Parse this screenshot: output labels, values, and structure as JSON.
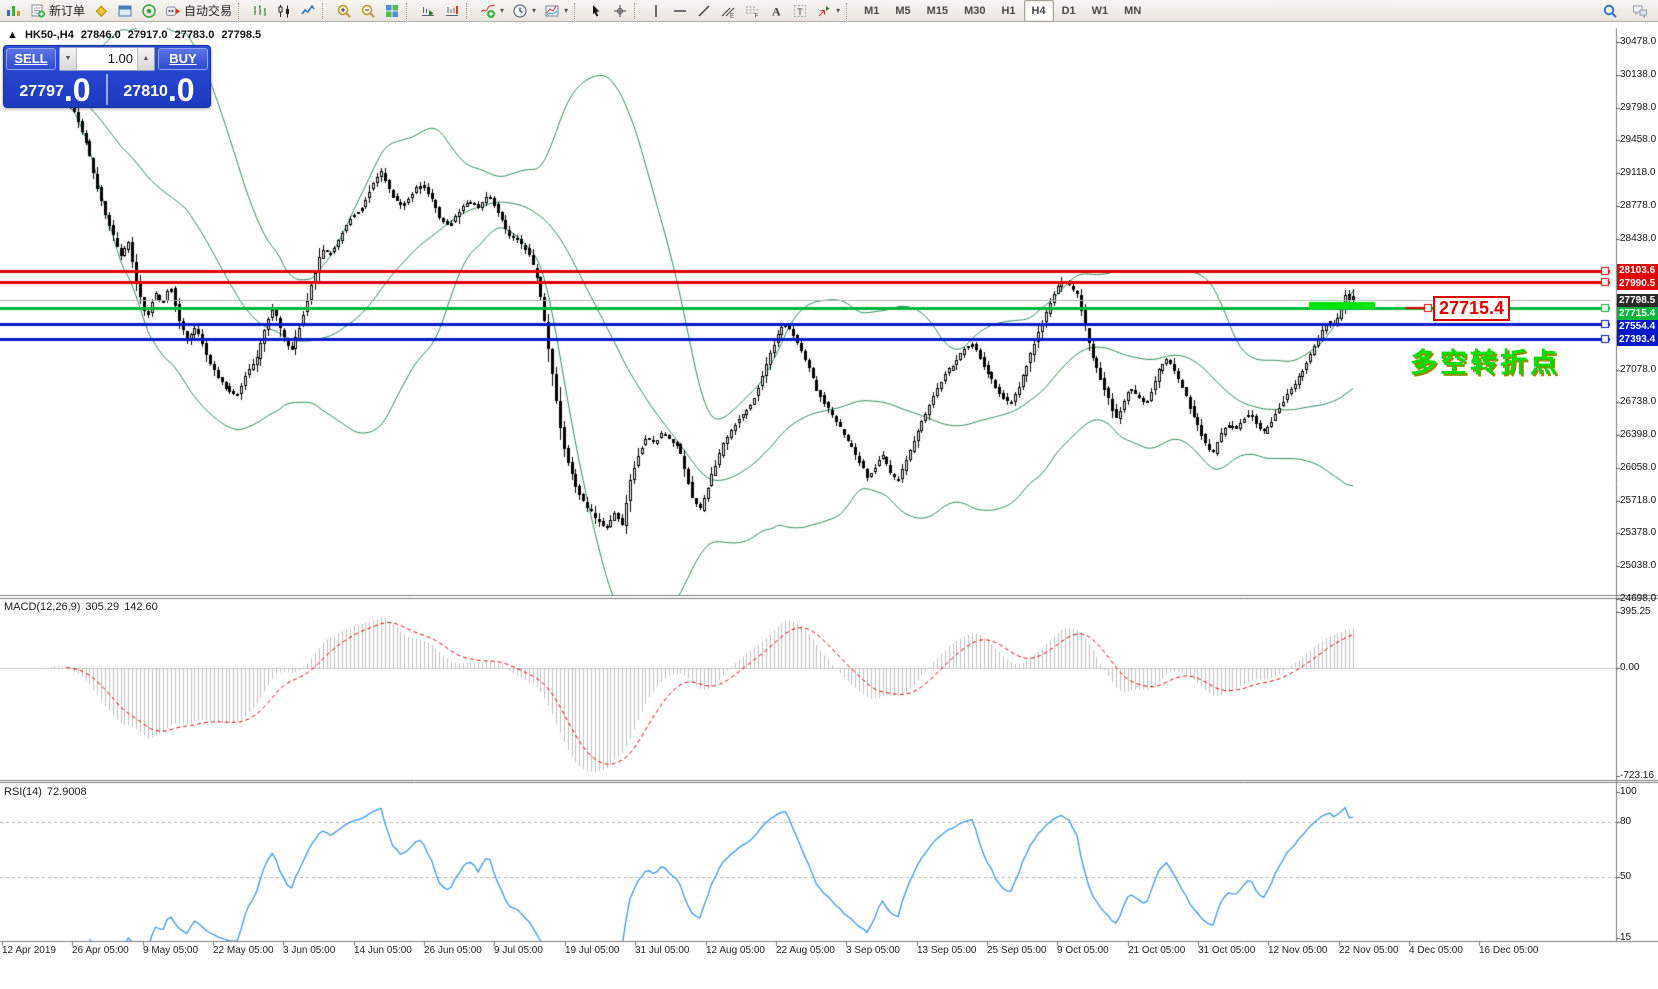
{
  "toolbar": {
    "buttons": [
      {
        "name": "chart-window-icon-button",
        "icon": "chartmini"
      },
      {
        "name": "new-order-button",
        "icon": "neworder",
        "label": "新订单"
      },
      {
        "name": "metaquotes-icon-button",
        "icon": "diamond"
      },
      {
        "name": "market-watch-button",
        "icon": "window"
      },
      {
        "name": "signals-button",
        "icon": "radar"
      },
      {
        "name": "autotrading-button",
        "icon": "autotrade",
        "label": "自动交易"
      },
      {
        "sep": true
      },
      {
        "name": "bar-chart-button",
        "icon": "bars"
      },
      {
        "name": "candlestick-chart-button",
        "icon": "candles"
      },
      {
        "name": "line-chart-button",
        "icon": "linechart"
      },
      {
        "sep": true
      },
      {
        "name": "zoom-in-button",
        "icon": "zoomin"
      },
      {
        "name": "zoom-out-button",
        "icon": "zoomout"
      },
      {
        "name": "tile-windows-button",
        "icon": "tiles"
      },
      {
        "sep": true
      },
      {
        "name": "auto-scroll-button",
        "icon": "autoscroll"
      },
      {
        "name": "chart-shift-button",
        "icon": "chartshift"
      },
      {
        "sep": true
      },
      {
        "name": "indicators-button",
        "icon": "indicators",
        "dropdown": true
      },
      {
        "name": "periods-button",
        "icon": "clock",
        "dropdown": true
      },
      {
        "name": "templates-button",
        "icon": "template",
        "dropdown": true
      },
      {
        "sep": true
      },
      {
        "name": "cursor-button",
        "icon": "cursor"
      },
      {
        "name": "crosshair-button",
        "icon": "crosshair"
      },
      {
        "sep": true
      },
      {
        "name": "vertical-line-button",
        "icon": "vline"
      },
      {
        "name": "horizontal-line-button",
        "icon": "hline"
      },
      {
        "name": "trendline-button",
        "icon": "tline"
      },
      {
        "name": "equidistant-channel-button",
        "icon": "channel"
      },
      {
        "name": "fibonacci-button",
        "icon": "fibo"
      },
      {
        "name": "text-button",
        "icon": "textA"
      },
      {
        "name": "text-label-button",
        "icon": "labelT"
      },
      {
        "name": "arrows-button",
        "icon": "arrows",
        "dropdown": true
      },
      {
        "sep": true
      }
    ],
    "timeframes": [
      {
        "label": "M1"
      },
      {
        "label": "M5"
      },
      {
        "label": "M15"
      },
      {
        "label": "M30"
      },
      {
        "label": "H1"
      },
      {
        "label": "H4",
        "active": true
      },
      {
        "label": "D1"
      },
      {
        "label": "W1"
      },
      {
        "label": "MN"
      }
    ],
    "right_icons": [
      {
        "name": "search-button",
        "icon": "search"
      },
      {
        "name": "chat-button",
        "icon": "chat"
      }
    ]
  },
  "title": {
    "arrow": "▲",
    "symbol": "HK50-,H4",
    "open": "27846.0",
    "high": "27917.0",
    "low": "27783.0",
    "close": "27798.5"
  },
  "trade": {
    "sell_label": "SELL",
    "buy_label": "BUY",
    "volume": "1.00",
    "sell_price_main": "27797",
    "sell_price_big": ".0",
    "buy_price_main": "27810",
    "buy_price_big": ".0",
    "spin_down": "▼",
    "spin_up": "▲"
  },
  "macd": {
    "name_label": "MACD(12,26,9)",
    "main_value": "305.29",
    "signal_value": "142.60"
  },
  "rsi": {
    "name_label": "RSI(14)",
    "value": "72.9008"
  },
  "callout": {
    "text": "27715.4"
  },
  "annotation": {
    "text": "多空转折点"
  },
  "chart_data": {
    "type": "candlestick",
    "symbol": "HK50-",
    "period": "H4",
    "last_bar": {
      "open": 27846.0,
      "high": 27917.0,
      "low": 27783.0,
      "close": 27798.5
    },
    "quote": {
      "sell": 27797.0,
      "buy": 27810.0,
      "volume": 1.0
    },
    "y_axis": {
      "min": 24698.0,
      "max": 30478.0,
      "tick_step": 340,
      "ticks": [
        30478.0,
        30138.0,
        29798.0,
        29458.0,
        29118.0,
        28778.0,
        28438.0,
        28098.0,
        27758.0,
        27418.0,
        27078.0,
        26738.0,
        26398.0,
        26058.0,
        25718.0,
        25378.0,
        25038.0,
        24698.0
      ]
    },
    "x_labels": [
      "12 Apr 2019",
      "26 Apr 05:00",
      "9 May 05:00",
      "22 May 05:00",
      "3 Jun 05:00",
      "14 Jun 05:00",
      "26 Jun 05:00",
      "9 Jul 05:00",
      "19 Jul 05:00",
      "31 Jul 05:00",
      "12 Aug 05:00",
      "22 Aug 05:00",
      "3 Sep 05:00",
      "13 Sep 05:00",
      "25 Sep 05:00",
      "9 Oct 05:00",
      "21 Oct 05:00",
      "31 Oct 05:00",
      "12 Nov 05:00",
      "22 Nov 05:00",
      "4 Dec 05:00",
      "16 Dec 05:00"
    ],
    "levels": [
      {
        "price": 28103.6,
        "label": "28103.6",
        "color": "#e00000",
        "kind": "resistance"
      },
      {
        "price": 27990.5,
        "label": "27990.5",
        "color": "#e00000",
        "kind": "resistance"
      },
      {
        "price": 27798.5,
        "label": "27798.5",
        "color": "#2b2b2b",
        "kind": "current",
        "line_color": "#b4b4b4"
      },
      {
        "price": 27715.4,
        "label": "27715.4",
        "color": "#00b83c",
        "kind": "pivot"
      },
      {
        "price": 27554.4,
        "label": "27554.4",
        "color": "#0018cc",
        "kind": "support"
      },
      {
        "price": 27393.4,
        "label": "27393.4",
        "color": "#0018cc",
        "kind": "support"
      }
    ],
    "highlight_bar": {
      "price": 27715.4,
      "color": "#00e400"
    },
    "indicators": {
      "bollinger": {
        "period": 40,
        "deviation": 2,
        "color": "#2e8b57"
      },
      "macd": {
        "params": [
          12,
          26,
          9
        ],
        "current_main": 305.29,
        "current_signal": 142.6,
        "axis": [
          395.25,
          0.0,
          -723.16
        ],
        "hist_color": "#bfbfbf",
        "signal_color": "#e00000"
      },
      "rsi": {
        "period": 14,
        "current": 72.9008,
        "levels": [
          80,
          50,
          15
        ],
        "axis": [
          100,
          80,
          50,
          15
        ],
        "color": "#3d96e8"
      }
    },
    "bars_count": 340,
    "price_path_anchors": [
      [
        35,
        30000
      ],
      [
        45,
        29850
      ],
      [
        55,
        30060
      ],
      [
        68,
        29920
      ],
      [
        80,
        29700
      ],
      [
        90,
        29420
      ],
      [
        100,
        29000
      ],
      [
        108,
        28720
      ],
      [
        116,
        28480
      ],
      [
        124,
        28250
      ],
      [
        132,
        28400
      ],
      [
        140,
        27980
      ],
      [
        150,
        27600
      ],
      [
        158,
        27880
      ],
      [
        166,
        27760
      ],
      [
        174,
        27960
      ],
      [
        182,
        27620
      ],
      [
        190,
        27380
      ],
      [
        200,
        27520
      ],
      [
        210,
        27230
      ],
      [
        220,
        27020
      ],
      [
        230,
        26880
      ],
      [
        240,
        26790
      ],
      [
        250,
        27040
      ],
      [
        260,
        27180
      ],
      [
        270,
        27560
      ],
      [
        277,
        27720
      ],
      [
        285,
        27460
      ],
      [
        295,
        27260
      ],
      [
        305,
        27580
      ],
      [
        315,
        27950
      ],
      [
        325,
        28320
      ],
      [
        335,
        28280
      ],
      [
        345,
        28480
      ],
      [
        355,
        28680
      ],
      [
        365,
        28740
      ],
      [
        375,
        28980
      ],
      [
        385,
        29130
      ],
      [
        395,
        28890
      ],
      [
        405,
        28760
      ],
      [
        415,
        28900
      ],
      [
        425,
        29010
      ],
      [
        435,
        28860
      ],
      [
        443,
        28660
      ],
      [
        452,
        28560
      ],
      [
        462,
        28700
      ],
      [
        472,
        28840
      ],
      [
        482,
        28760
      ],
      [
        492,
        28890
      ],
      [
        502,
        28700
      ],
      [
        512,
        28470
      ],
      [
        522,
        28410
      ],
      [
        532,
        28290
      ],
      [
        542,
        27980
      ],
      [
        551,
        27380
      ],
      [
        559,
        26820
      ],
      [
        566,
        26320
      ],
      [
        573,
        26060
      ],
      [
        581,
        25820
      ],
      [
        590,
        25660
      ],
      [
        600,
        25520
      ],
      [
        610,
        25420
      ],
      [
        618,
        25600
      ],
      [
        626,
        25460
      ],
      [
        633,
        25900
      ],
      [
        641,
        26180
      ],
      [
        650,
        26380
      ],
      [
        658,
        26300
      ],
      [
        666,
        26440
      ],
      [
        674,
        26340
      ],
      [
        682,
        26280
      ],
      [
        690,
        25980
      ],
      [
        697,
        25700
      ],
      [
        704,
        25620
      ],
      [
        712,
        25880
      ],
      [
        719,
        26080
      ],
      [
        726,
        26280
      ],
      [
        734,
        26440
      ],
      [
        742,
        26560
      ],
      [
        751,
        26660
      ],
      [
        759,
        26800
      ],
      [
        766,
        27010
      ],
      [
        773,
        27240
      ],
      [
        781,
        27430
      ],
      [
        788,
        27560
      ],
      [
        796,
        27450
      ],
      [
        803,
        27300
      ],
      [
        811,
        27140
      ],
      [
        819,
        26900
      ],
      [
        826,
        26760
      ],
      [
        834,
        26640
      ],
      [
        842,
        26500
      ],
      [
        850,
        26340
      ],
      [
        857,
        26240
      ],
      [
        864,
        26100
      ],
      [
        871,
        25960
      ],
      [
        878,
        26060
      ],
      [
        886,
        26200
      ],
      [
        893,
        26010
      ],
      [
        901,
        25910
      ],
      [
        909,
        26110
      ],
      [
        916,
        26300
      ],
      [
        924,
        26500
      ],
      [
        932,
        26690
      ],
      [
        939,
        26840
      ],
      [
        947,
        27000
      ],
      [
        954,
        27100
      ],
      [
        962,
        27200
      ],
      [
        969,
        27300
      ],
      [
        976,
        27340
      ],
      [
        984,
        27190
      ],
      [
        991,
        27040
      ],
      [
        999,
        26900
      ],
      [
        1006,
        26800
      ],
      [
        1013,
        26720
      ],
      [
        1021,
        26860
      ],
      [
        1029,
        27090
      ],
      [
        1036,
        27290
      ],
      [
        1043,
        27490
      ],
      [
        1051,
        27690
      ],
      [
        1058,
        27880
      ],
      [
        1066,
        28010
      ],
      [
        1073,
        27950
      ],
      [
        1081,
        27840
      ],
      [
        1089,
        27500
      ],
      [
        1096,
        27210
      ],
      [
        1103,
        27010
      ],
      [
        1111,
        26800
      ],
      [
        1119,
        26560
      ],
      [
        1126,
        26700
      ],
      [
        1133,
        26890
      ],
      [
        1141,
        26800
      ],
      [
        1149,
        26710
      ],
      [
        1156,
        26890
      ],
      [
        1163,
        27090
      ],
      [
        1171,
        27190
      ],
      [
        1179,
        27050
      ],
      [
        1186,
        26890
      ],
      [
        1193,
        26700
      ],
      [
        1201,
        26500
      ],
      [
        1209,
        26310
      ],
      [
        1216,
        26190
      ],
      [
        1223,
        26380
      ],
      [
        1231,
        26500
      ],
      [
        1239,
        26460
      ],
      [
        1247,
        26560
      ],
      [
        1254,
        26640
      ],
      [
        1261,
        26500
      ],
      [
        1268,
        26420
      ],
      [
        1276,
        26560
      ],
      [
        1284,
        26700
      ],
      [
        1291,
        26820
      ],
      [
        1298,
        26920
      ],
      [
        1306,
        27060
      ],
      [
        1313,
        27200
      ],
      [
        1320,
        27360
      ],
      [
        1327,
        27500
      ],
      [
        1333,
        27580
      ],
      [
        1339,
        27540
      ],
      [
        1344,
        27680
      ],
      [
        1349,
        27860
      ],
      [
        1353,
        27798.5
      ]
    ]
  }
}
